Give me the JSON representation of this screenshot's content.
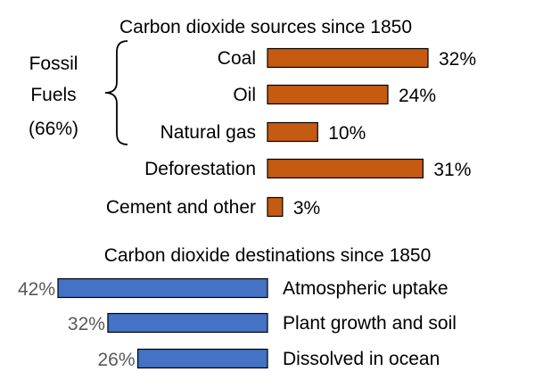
{
  "chart_data": [
    {
      "type": "bar",
      "orientation": "horizontal",
      "title": "Carbon dioxide sources since 1850",
      "categories": [
        "Coal",
        "Oil",
        "Natural gas",
        "Deforestation",
        "Cement and other"
      ],
      "values": [
        32,
        24,
        10,
        31,
        3
      ],
      "value_labels": [
        "32%",
        "24%",
        "10%",
        "31%",
        "3%"
      ],
      "unit": "%",
      "bar_color": "#c55a11",
      "group": {
        "lines": [
          "Fossil",
          "Fuels",
          "(66%)"
        ],
        "members": [
          "Coal",
          "Oil",
          "Natural gas"
        ]
      }
    },
    {
      "type": "bar",
      "orientation": "horizontal",
      "direction": "right-to-left",
      "title": "Carbon dioxide destinations since 1850",
      "categories": [
        "Atmospheric uptake",
        "Plant growth and soil",
        "Dissolved in ocean"
      ],
      "values": [
        42,
        32,
        26
      ],
      "value_labels": [
        "42%",
        "32%",
        "26%"
      ],
      "unit": "%",
      "bar_color": "#4472c4"
    }
  ]
}
